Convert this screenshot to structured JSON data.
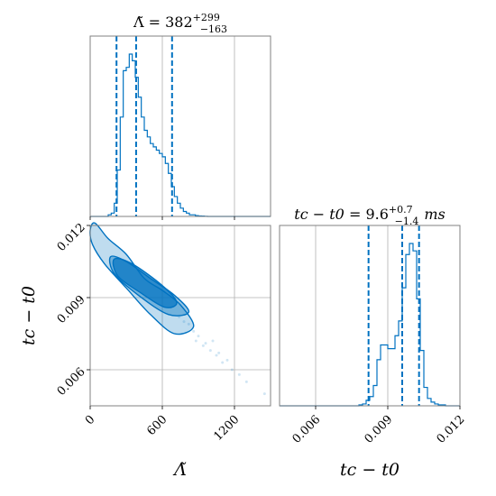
{
  "chart_data": {
    "type": "corner",
    "accent_color": "#0072c1",
    "parameters": [
      {
        "id": "lambda",
        "axis_label": "Λ̃",
        "title": {
          "lhs": "Λ̃",
          "median": "382",
          "plus": "+299",
          "minus": "−163",
          "unit": ""
        },
        "range": [
          0,
          1500
        ],
        "ticks": [
          {
            "value": 0,
            "label": "0"
          },
          {
            "value": 600,
            "label": "600"
          },
          {
            "value": 1200,
            "label": "1200"
          }
        ],
        "quantiles": [
          219,
          382,
          681
        ],
        "hist_bins": [
          0,
          25,
          50,
          75,
          100,
          125,
          150,
          175,
          200,
          225,
          250,
          275,
          300,
          325,
          350,
          375,
          400,
          425,
          450,
          475,
          500,
          525,
          550,
          575,
          600,
          625,
          650,
          675,
          700,
          725,
          750,
          775,
          800,
          825,
          850,
          875,
          900,
          925,
          950,
          975,
          1000,
          1025,
          1050,
          1075,
          1100,
          1125,
          1150,
          1175,
          1200,
          1225,
          1250,
          1275,
          1300,
          1325,
          1350,
          1375,
          1400,
          1425,
          1450,
          1475,
          1500
        ],
        "hist_counts": [
          0,
          0,
          0,
          0,
          0,
          0,
          1,
          2,
          8,
          28,
          60,
          88,
          90,
          98,
          94,
          84,
          72,
          60,
          52,
          48,
          44,
          42,
          40,
          38,
          36,
          32,
          26,
          18,
          12,
          8,
          5,
          3,
          2,
          1,
          1,
          0.5,
          0.3,
          0.2,
          0.1,
          0,
          0,
          0,
          0,
          0,
          0,
          0,
          0,
          0,
          0,
          0,
          0,
          0,
          0,
          0,
          0,
          0,
          0,
          0,
          0,
          0
        ]
      },
      {
        "id": "tc",
        "axis_label": "tc − t0",
        "title": {
          "lhs": "tc − t0",
          "median": "9.6",
          "plus": "+0.7",
          "minus": "−1.4",
          "unit": "ms"
        },
        "range": [
          0.0045,
          0.012
        ],
        "ticks": [
          {
            "value": 0.006,
            "label": "0.006"
          },
          {
            "value": 0.009,
            "label": "0.009"
          },
          {
            "value": 0.012,
            "label": "0.012"
          }
        ],
        "quantiles": [
          0.0082,
          0.0096,
          0.0103
        ],
        "hist_bins": [
          0.0045,
          0.00465,
          0.0048,
          0.00495,
          0.0051,
          0.00525,
          0.0054,
          0.00555,
          0.0057,
          0.00585,
          0.006,
          0.00615,
          0.0063,
          0.00645,
          0.0066,
          0.00675,
          0.0069,
          0.00705,
          0.0072,
          0.00735,
          0.0075,
          0.00765,
          0.0078,
          0.00795,
          0.0081,
          0.00825,
          0.0084,
          0.00855,
          0.0087,
          0.00885,
          0.009,
          0.00915,
          0.0093,
          0.00945,
          0.0096,
          0.00975,
          0.0099,
          0.01005,
          0.0102,
          0.01035,
          0.0105,
          0.01065,
          0.0108,
          0.01095,
          0.0111,
          0.01125,
          0.0114,
          0.01155,
          0.0117,
          0.01185,
          0.012
        ],
        "hist_counts": [
          0,
          0,
          0,
          0,
          0,
          0,
          0,
          0,
          0,
          0,
          0,
          0,
          0,
          0,
          0,
          0,
          0,
          0,
          0,
          0,
          0,
          0,
          0.5,
          1,
          3,
          5,
          11,
          25,
          33,
          33,
          31,
          31,
          38,
          46,
          64,
          82,
          88,
          84,
          58,
          30,
          10,
          4,
          2,
          1,
          0.5,
          0.5,
          0,
          0,
          0,
          0
        ]
      }
    ],
    "joint": {
      "x": "lambda",
      "y": "tc",
      "contours": [
        {
          "level": "outer",
          "fill_opacity": 0.25,
          "points": [
            [
              0,
              0.0118
            ],
            [
              40,
              0.0121
            ],
            [
              150,
              0.01145
            ],
            [
              300,
              0.0108
            ],
            [
              450,
              0.0098
            ],
            [
              600,
              0.0093
            ],
            [
              750,
              0.0087
            ],
            [
              860,
              0.0078
            ],
            [
              700,
              0.0075
            ],
            [
              500,
              0.0083
            ],
            [
              300,
              0.0094
            ],
            [
              120,
              0.0104
            ],
            [
              20,
              0.0112
            ]
          ]
        },
        {
          "level": "middle",
          "fill_opacity": 0.4,
          "points": [
            [
              170,
              0.0107
            ],
            [
              300,
              0.0105
            ],
            [
              500,
              0.0098
            ],
            [
              700,
              0.0091
            ],
            [
              820,
              0.0084
            ],
            [
              650,
              0.0083
            ],
            [
              400,
              0.0091
            ],
            [
              200,
              0.01
            ]
          ]
        },
        {
          "level": "inner",
          "fill_opacity": 0.7,
          "points": [
            [
              200,
              0.0106
            ],
            [
              350,
              0.0104
            ],
            [
              600,
              0.0095
            ],
            [
              720,
              0.0088
            ],
            [
              620,
              0.0086
            ],
            [
              420,
              0.0092
            ],
            [
              230,
              0.0099
            ]
          ]
        }
      ],
      "samples": [
        [
          780,
          0.008
        ],
        [
          820,
          0.0079
        ],
        [
          860,
          0.0076
        ],
        [
          900,
          0.0074
        ],
        [
          960,
          0.0071
        ],
        [
          1000,
          0.0068
        ],
        [
          1050,
          0.0066
        ],
        [
          1100,
          0.0063
        ],
        [
          1180,
          0.006
        ],
        [
          1240,
          0.0058
        ],
        [
          1300,
          0.0055
        ],
        [
          1450,
          0.005
        ],
        [
          880,
          0.0072
        ],
        [
          940,
          0.007
        ],
        [
          740,
          0.0082
        ],
        [
          1020,
          0.0072
        ],
        [
          1070,
          0.0067
        ],
        [
          1140,
          0.0064
        ]
      ]
    }
  }
}
